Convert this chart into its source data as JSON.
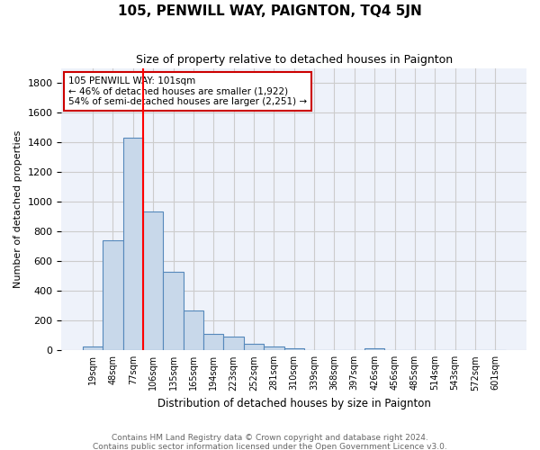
{
  "title": "105, PENWILL WAY, PAIGNTON, TQ4 5JN",
  "subtitle": "Size of property relative to detached houses in Paignton",
  "xlabel": "Distribution of detached houses by size in Paignton",
  "ylabel": "Number of detached properties",
  "bar_values": [
    25,
    740,
    1430,
    935,
    530,
    270,
    110,
    95,
    45,
    25,
    15,
    0,
    0,
    0,
    15,
    0,
    0,
    0,
    0,
    0,
    0
  ],
  "bar_labels": [
    "19sqm",
    "48sqm",
    "77sqm",
    "106sqm",
    "135sqm",
    "165sqm",
    "194sqm",
    "223sqm",
    "252sqm",
    "281sqm",
    "310sqm",
    "339sqm",
    "368sqm",
    "397sqm",
    "426sqm",
    "456sqm",
    "485sqm",
    "514sqm",
    "543sqm",
    "572sqm",
    "601sqm"
  ],
  "bar_color": "#c8d8ea",
  "bar_edge_color": "#5588bb",
  "grid_color": "#cccccc",
  "background_color": "#eef2fa",
  "annotation_box_color": "#ffffff",
  "annotation_box_edge": "#cc0000",
  "red_line_x": 2.5,
  "annotation_text_line1": "105 PENWILL WAY: 101sqm",
  "annotation_text_line2": "← 46% of detached houses are smaller (1,922)",
  "annotation_text_line3": "54% of semi-detached houses are larger (2,251) →",
  "ylim": [
    0,
    1900
  ],
  "yticks": [
    0,
    200,
    400,
    600,
    800,
    1000,
    1200,
    1400,
    1600,
    1800
  ],
  "footer_line1": "Contains HM Land Registry data © Crown copyright and database right 2024.",
  "footer_line2": "Contains public sector information licensed under the Open Government Licence v3.0."
}
